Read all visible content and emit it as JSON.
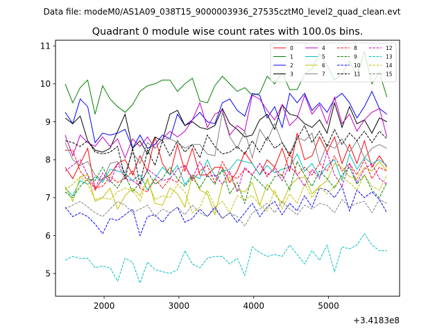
{
  "figure": {
    "suptitle": "Data file: modeM0/AS1A09_038T15_9000003936_27535cztM0_level2_quad_clean.evt"
  },
  "chart_data": {
    "type": "line",
    "title": "Quadrant 0 module wise count rates with 100.0s bins.",
    "xlabel": "",
    "ylabel": "",
    "x_offset_label": "+3.4183e8",
    "xlim": [
      1350,
      5950
    ],
    "ylim": [
      4.4,
      11.15
    ],
    "xticks": [
      2000,
      3000,
      4000,
      5000
    ],
    "yticks": [
      5,
      6,
      7,
      8,
      9,
      10,
      11
    ],
    "grid": false,
    "legend": {
      "placement": "top-right",
      "columns": 4
    },
    "x": [
      1480,
      1580,
      1680,
      1780,
      1880,
      1980,
      2080,
      2180,
      2280,
      2380,
      2480,
      2580,
      2680,
      2780,
      2880,
      2980,
      3080,
      3180,
      3280,
      3380,
      3480,
      3580,
      3680,
      3780,
      3880,
      3980,
      4080,
      4180,
      4280,
      4380,
      4480,
      4580,
      4680,
      4780,
      4880,
      4980,
      5080,
      5180,
      5280,
      5380,
      5480,
      5580,
      5680,
      5780
    ],
    "series": [
      {
        "name": "0",
        "color": "#ff0000",
        "dash": "solid",
        "values": [
          7.8,
          7.5,
          7.9,
          8.3,
          7.2,
          7.5,
          7.6,
          7.9,
          8.0,
          7.6,
          8.1,
          7.7,
          8.6,
          7.9,
          7.6,
          8.4,
          7.7,
          8.3,
          7.6,
          7.6,
          7.8,
          7.8,
          7.4,
          7.7,
          8.2,
          7.9,
          7.6,
          8.0,
          7.8,
          8.3,
          7.7,
          8.7,
          8.0,
          8.1,
          8.6,
          8.2,
          8.6,
          7.9,
          8.4,
          7.9,
          8.5,
          7.8,
          8.1,
          7.8
        ]
      },
      {
        "name": "1",
        "color": "#008000",
        "dash": "solid",
        "values": [
          10.0,
          9.5,
          9.9,
          10.1,
          9.2,
          9.95,
          9.6,
          9.4,
          9.25,
          9.45,
          9.8,
          9.95,
          10.0,
          10.1,
          10.1,
          9.8,
          10.0,
          10.15,
          9.55,
          9.5,
          9.95,
          10.2,
          10.0,
          9.8,
          9.9,
          9.7,
          9.75,
          10.2,
          10.0,
          10.3,
          9.85,
          9.85,
          10.25,
          10.4,
          10.8,
          10.5,
          10.1,
          10.25,
          10.6,
          10.2,
          10.85,
          10.0,
          10.3,
          9.65
        ]
      },
      {
        "name": "2",
        "color": "#0000ff",
        "dash": "solid",
        "values": [
          9.25,
          8.95,
          9.6,
          9.4,
          8.45,
          8.7,
          8.65,
          8.7,
          8.8,
          8.3,
          8.65,
          8.3,
          8.4,
          8.65,
          8.55,
          9.2,
          8.9,
          9.05,
          9.25,
          9.0,
          8.95,
          9.5,
          9.6,
          9.3,
          9.15,
          9.75,
          9.7,
          9.1,
          9.4,
          8.85,
          9.75,
          9.5,
          9.75,
          9.3,
          9.5,
          9.25,
          9.6,
          9.75,
          9.5,
          9.1,
          9.4,
          9.8,
          9.35,
          9.2
        ]
      },
      {
        "name": "3",
        "color": "#000000",
        "dash": "solid",
        "values": [
          9.1,
          8.95,
          9.15,
          8.5,
          8.25,
          8.2,
          8.3,
          8.75,
          9.2,
          8.3,
          8.5,
          8.15,
          8.6,
          8.5,
          9.2,
          9.3,
          8.9,
          9.0,
          8.85,
          8.8,
          8.9,
          9.35,
          8.95,
          8.8,
          8.6,
          8.65,
          9.05,
          9.2,
          8.8,
          9.45,
          9.2,
          9.15,
          8.95,
          8.85,
          9.05,
          8.7,
          9.5,
          8.85,
          9.4,
          8.95,
          9.05,
          8.7,
          9.1,
          9.0
        ]
      },
      {
        "name": "4",
        "color": "#bf00bf",
        "dash": "solid",
        "values": [
          8.65,
          8.1,
          8.65,
          8.45,
          8.35,
          8.6,
          8.35,
          8.55,
          8.05,
          8.55,
          8.35,
          8.6,
          8.3,
          8.55,
          8.75,
          8.6,
          8.75,
          9.05,
          9.5,
          8.85,
          9.2,
          9.3,
          8.65,
          8.9,
          8.75,
          9.7,
          9.6,
          9.3,
          9.05,
          9.45,
          8.9,
          9.1,
          9.7,
          9.2,
          9.45,
          8.95,
          9.65,
          8.95,
          9.2,
          8.75,
          9.05,
          9.25,
          9.35,
          8.6
        ]
      },
      {
        "name": "5",
        "color": "#00bfbf",
        "dash": "solid",
        "values": [
          7.25,
          7.05,
          7.45,
          7.35,
          7.55,
          7.4,
          7.75,
          7.7,
          7.65,
          7.45,
          7.6,
          7.2,
          7.5,
          7.8,
          7.6,
          7.85,
          7.35,
          7.6,
          7.5,
          8.0,
          7.55,
          7.7,
          7.75,
          8.0,
          7.95,
          7.9,
          7.6,
          7.85,
          7.65,
          7.75,
          7.8,
          8.15,
          7.7,
          7.9,
          7.55,
          7.85,
          8.0,
          7.45,
          8.15,
          7.75,
          8.05,
          7.9,
          8.0,
          7.85
        ]
      },
      {
        "name": "6",
        "color": "#bfbf00",
        "dash": "solid",
        "values": [
          7.3,
          6.9,
          7.55,
          7.6,
          6.9,
          7.0,
          7.25,
          6.7,
          7.05,
          7.25,
          7.05,
          7.5,
          6.85,
          6.8,
          7.25,
          7.1,
          6.75,
          7.6,
          7.2,
          7.1,
          6.55,
          7.35,
          7.55,
          7.2,
          7.15,
          7.4,
          6.8,
          7.35,
          7.1,
          6.85,
          7.3,
          7.5,
          7.55,
          7.1,
          7.3,
          7.45,
          7.9,
          7.8,
          7.55,
          7.5,
          7.8,
          7.7,
          7.95,
          7.7
        ]
      },
      {
        "name": "7",
        "color": "#808080",
        "dash": "solid",
        "values": [
          8.45,
          8.0,
          7.85,
          7.95,
          7.6,
          7.45,
          7.9,
          7.95,
          7.65,
          8.2,
          7.9,
          8.45,
          8.3,
          8.55,
          8.55,
          8.45,
          8.3,
          8.4,
          8.4,
          8.15,
          8.1,
          9.25,
          8.6,
          8.3,
          8.75,
          8.05,
          8.8,
          8.5,
          8.95,
          8.45,
          8.15,
          8.6,
          8.5,
          8.7,
          7.9,
          8.4,
          8.3,
          8.55,
          8.2,
          8.5,
          8.05,
          8.3,
          8.4,
          8.3
        ]
      },
      {
        "name": "8",
        "color": "#ff0000",
        "dash": "dashed",
        "values": [
          8.25,
          8.25,
          7.7,
          7.45,
          7.25,
          7.3,
          7.55,
          7.4,
          7.5,
          7.7,
          7.25,
          7.15,
          7.5,
          7.25,
          7.5,
          7.4,
          7.85,
          7.45,
          7.7,
          7.85,
          7.4,
          7.95,
          7.6,
          7.5,
          7.75,
          7.6,
          7.9,
          7.55,
          7.8,
          7.55,
          8.2,
          7.6,
          7.8,
          7.6,
          7.9,
          7.7,
          8.1,
          7.7,
          7.9,
          7.6,
          8.0,
          7.5,
          7.8,
          7.7
        ]
      },
      {
        "name": "9",
        "color": "#008000",
        "dash": "dashed",
        "values": [
          7.15,
          7.0,
          7.3,
          7.5,
          7.45,
          7.8,
          7.45,
          7.25,
          7.6,
          7.15,
          7.4,
          7.7,
          7.35,
          7.5,
          7.8,
          7.5,
          7.3,
          7.55,
          7.25,
          7.6,
          7.35,
          7.75,
          7.1,
          7.4,
          6.85,
          7.6,
          7.4,
          7.2,
          7.55,
          7.6,
          7.2,
          7.95,
          7.6,
          7.3,
          7.7,
          7.5,
          7.25,
          7.6,
          7.8,
          7.35,
          7.6,
          7.2,
          7.0,
          7.4
        ]
      },
      {
        "name": "10",
        "color": "#0000ff",
        "dash": "dashed",
        "values": [
          6.75,
          6.5,
          6.6,
          6.5,
          6.3,
          6.05,
          6.45,
          6.4,
          6.55,
          6.7,
          6.0,
          6.5,
          6.55,
          6.35,
          6.6,
          6.75,
          6.35,
          6.45,
          6.7,
          6.5,
          6.75,
          6.45,
          6.6,
          6.35,
          6.6,
          6.85,
          6.5,
          6.75,
          6.9,
          6.55,
          6.85,
          6.65,
          7.05,
          6.75,
          7.25,
          7.2,
          7.0,
          7.3,
          6.65,
          7.2,
          7.0,
          7.15,
          6.95,
          6.6
        ]
      },
      {
        "name": "11",
        "color": "#000000",
        "dash": "dashed",
        "values": [
          8.5,
          8.45,
          8.35,
          8.5,
          8.2,
          8.15,
          8.2,
          8.35,
          7.5,
          8.3,
          7.35,
          8.25,
          7.85,
          8.5,
          8.1,
          8.5,
          8.2,
          8.4,
          8.05,
          8.65,
          8.35,
          8.15,
          8.2,
          8.35,
          8.15,
          8.5,
          8.2,
          8.6,
          8.3,
          8.45,
          8.1,
          8.55,
          8.9,
          8.45,
          8.75,
          8.35,
          8.8,
          8.4,
          8.7,
          8.5,
          8.75,
          8.45,
          8.75,
          8.55
        ]
      },
      {
        "name": "12",
        "color": "#bf00bf",
        "dash": "dashed",
        "values": [
          7.7,
          7.85,
          8.0,
          7.6,
          7.25,
          7.65,
          7.4,
          7.9,
          7.5,
          7.45,
          7.3,
          7.75,
          7.6,
          7.45,
          7.5,
          7.75,
          7.85,
          7.5,
          7.95,
          7.55,
          7.6,
          7.35,
          7.7,
          7.15,
          7.8,
          7.6,
          7.9,
          7.6,
          7.75,
          7.45,
          7.85,
          7.6,
          7.3,
          7.75,
          7.5,
          8.2,
          7.6,
          7.3,
          7.9,
          7.4,
          7.75,
          7.9,
          7.5,
          7.35
        ]
      },
      {
        "name": "13",
        "color": "#00bfbf",
        "dash": "dashed",
        "values": [
          5.35,
          5.45,
          5.4,
          5.4,
          5.15,
          5.2,
          5.15,
          4.8,
          5.4,
          5.3,
          4.75,
          5.3,
          5.1,
          5.05,
          5.0,
          5.1,
          5.6,
          5.25,
          5.15,
          5.4,
          5.45,
          5.45,
          5.25,
          5.4,
          4.95,
          5.7,
          5.55,
          5.45,
          5.5,
          5.45,
          5.75,
          5.5,
          5.25,
          5.6,
          5.35,
          5.75,
          5.05,
          5.7,
          5.65,
          5.75,
          6.05,
          5.75,
          5.6,
          5.6
        ]
      },
      {
        "name": "14",
        "color": "#bfbf00",
        "dash": "dashed",
        "values": [
          7.2,
          7.35,
          7.55,
          7.35,
          6.95,
          7.0,
          6.95,
          7.15,
          7.25,
          7.2,
          6.9,
          7.45,
          6.95,
          7.05,
          7.0,
          7.35,
          7.15,
          6.6,
          6.75,
          7.2,
          6.75,
          6.9,
          6.6,
          7.05,
          6.95,
          7.05,
          6.8,
          6.65,
          7.2,
          6.7,
          7.1,
          6.85,
          7.35,
          7.0,
          7.3,
          7.1,
          7.3,
          7.55,
          7.4,
          7.2,
          7.6,
          7.3,
          7.2,
          7.6
        ]
      },
      {
        "name": "15",
        "color": "#808080",
        "dash": "dashed",
        "values": [
          6.7,
          6.8,
          6.9,
          6.75,
          6.6,
          6.5,
          6.7,
          6.9,
          6.8,
          6.6,
          6.7,
          6.8,
          6.5,
          6.7,
          6.6,
          6.75,
          6.55,
          6.8,
          6.6,
          6.5,
          6.7,
          6.45,
          6.6,
          6.5,
          6.25,
          6.6,
          6.7,
          6.85,
          6.6,
          6.9,
          6.7,
          6.55,
          6.8,
          6.7,
          6.85,
          6.8,
          6.6,
          6.95,
          6.75,
          6.85,
          6.9,
          6.6,
          6.95,
          6.85
        ]
      }
    ]
  }
}
